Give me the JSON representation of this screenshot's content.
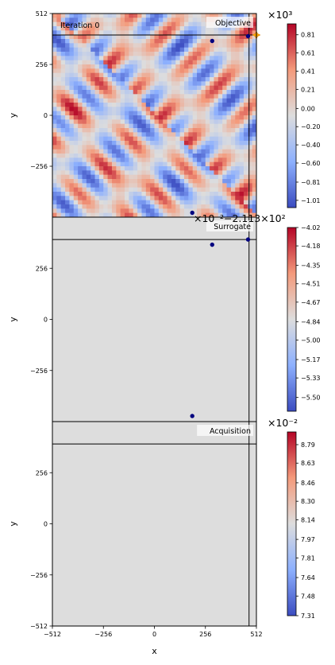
{
  "chart_data": [
    {
      "type": "heatmap",
      "panel": "objective",
      "title": "Objective",
      "annotation": "Iteration 0",
      "xlabel": "",
      "ylabel": "y",
      "xlim": [
        -512,
        512
      ],
      "ylim": [
        -512,
        512
      ],
      "yticks": [
        -256,
        0,
        256,
        512
      ],
      "colormap": "coolwarm",
      "colorbar": {
        "label": "×10³",
        "range": [
          -1.09,
          0.93
        ],
        "ticks": [
          0.81,
          0.61,
          0.41,
          0.21,
          0.0,
          -0.2,
          -0.4,
          -0.6,
          -0.81,
          -1.01
        ],
        "tick_labels": [
          "0.81",
          "0.61",
          "0.41",
          "0.21",
          "0.00",
          "-0.20",
          "-0.40",
          "-0.60",
          "-0.81",
          "-1.01"
        ]
      },
      "crosshair": {
        "x": 475,
        "y": 404
      },
      "points": [
        [
          290,
          374
        ],
        [
          470,
          398
        ],
        [
          190,
          -490
        ]
      ],
      "optimum": {
        "x": 512,
        "y": 404
      }
    },
    {
      "type": "heatmap",
      "panel": "surrogate",
      "title": "Surrogate",
      "xlabel": "",
      "ylabel": "y",
      "xlim": [
        -512,
        512
      ],
      "ylim": [
        -512,
        512
      ],
      "yticks": [
        -256,
        0,
        256
      ],
      "colormap": "coolwarm",
      "uniform_value": "flat",
      "colorbar": {
        "label": "×10⁻²−2.113×10²",
        "range": [
          -5.62,
          -4.02
        ],
        "ticks": [
          -4.02,
          -4.18,
          -4.35,
          -4.51,
          -4.67,
          -4.84,
          -5.0,
          -5.17,
          -5.33,
          -5.5
        ],
        "tick_labels": [
          "-4.02",
          "-4.18",
          "-4.35",
          "-4.51",
          "-4.67",
          "-4.84",
          "-5.00",
          "-5.17",
          "-5.33",
          "-5.50"
        ]
      },
      "crosshair": {
        "x": 475,
        "y": 400
      },
      "points": [
        [
          290,
          374
        ],
        [
          470,
          400
        ],
        [
          190,
          -484
        ]
      ]
    },
    {
      "type": "heatmap",
      "panel": "acquisition",
      "title": "Acquisition",
      "xlabel": "x",
      "ylabel": "y",
      "xlim": [
        -512,
        512
      ],
      "ylim": [
        -512,
        512
      ],
      "xticks": [
        -512,
        -256,
        0,
        256,
        512
      ],
      "yticks": [
        -512,
        -256,
        0,
        256
      ],
      "colormap": "coolwarm",
      "uniform_value": "flat",
      "colorbar": {
        "label": "×10⁻²",
        "range": [
          7.31,
          8.9
        ],
        "ticks": [
          8.79,
          8.63,
          8.46,
          8.3,
          8.14,
          7.97,
          7.81,
          7.64,
          7.48,
          7.31
        ],
        "tick_labels": [
          "8.79",
          "8.63",
          "8.46",
          "8.30",
          "8.14",
          "7.97",
          "7.81",
          "7.64",
          "7.48",
          "7.31"
        ]
      },
      "crosshair": {
        "x": 475,
        "y": 400
      },
      "points": []
    }
  ]
}
